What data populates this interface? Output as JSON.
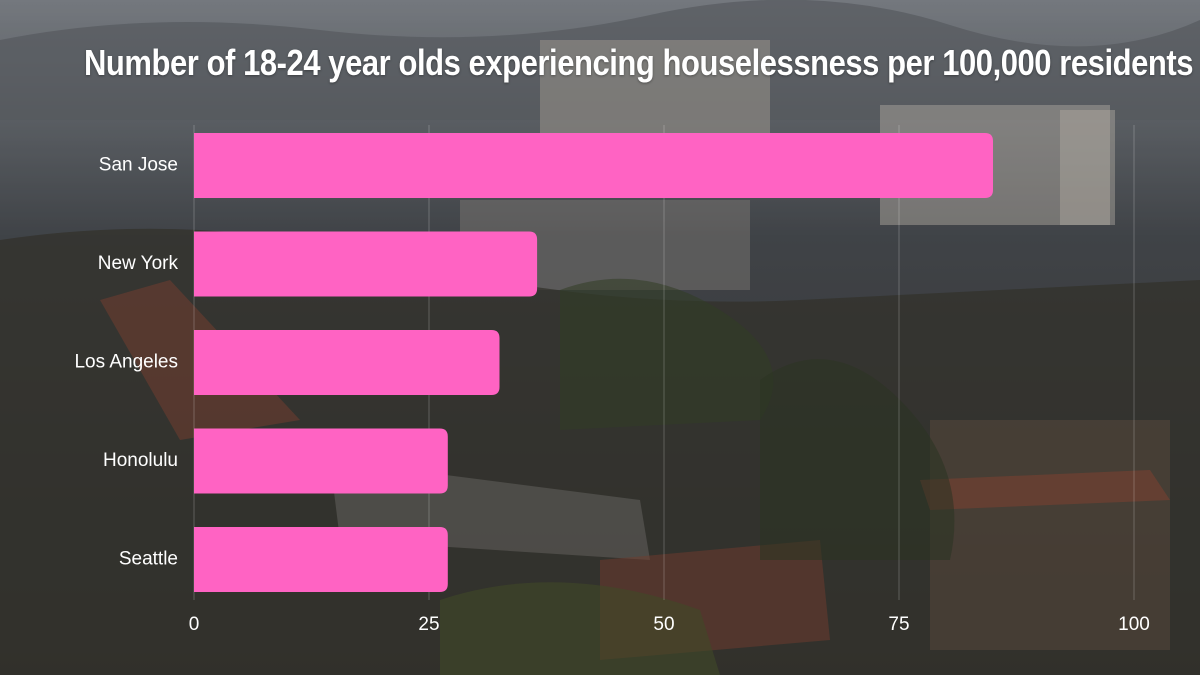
{
  "colors": {
    "bar": "#ff63c3",
    "text": "#ffffff",
    "grid": "rgba(255,255,255,0.22)"
  },
  "background": {
    "description_icon": "campus-skyline-photo"
  },
  "chart_data": {
    "type": "bar",
    "orientation": "horizontal",
    "title": "Number of 18-24 year olds experiencing houselessness per 100,000 residents",
    "categories": [
      "San Jose",
      "New York",
      "Los Angeles",
      "Honolulu",
      "Seattle"
    ],
    "values": [
      85,
      36.5,
      32.5,
      27,
      27
    ],
    "xlim": [
      0,
      100
    ],
    "xticks": [
      "0",
      "25",
      "50",
      "75",
      "100"
    ],
    "grid": true
  }
}
